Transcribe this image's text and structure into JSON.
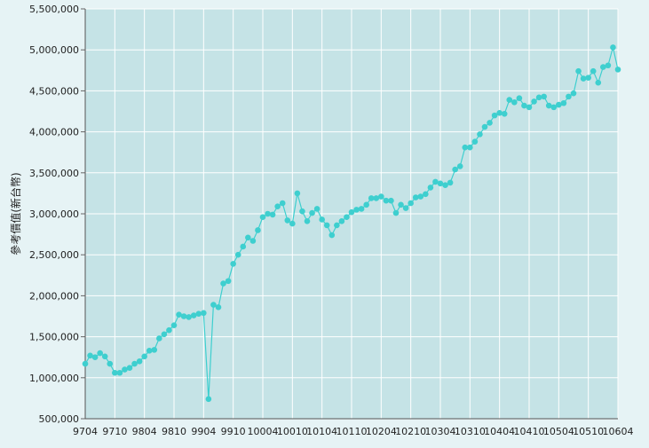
{
  "chart_data": {
    "type": "line",
    "title": "",
    "xlabel": "",
    "ylabel": "參考價值(新台幣)",
    "ylim": [
      500000,
      5500000
    ],
    "y_ticks": [
      "500,000",
      "1,000,000",
      "1,500,000",
      "2,000,000",
      "2,500,000",
      "3,000,000",
      "3,500,000",
      "4,000,000",
      "4,500,000",
      "5,000,000",
      "5,500,000"
    ],
    "x_ticks": [
      "9704",
      "9710",
      "9804",
      "9810",
      "9904",
      "9910",
      "10004",
      "10010",
      "10104",
      "10110",
      "10204",
      "10210",
      "10304",
      "10310",
      "10404",
      "10410",
      "10504",
      "10510",
      "10604"
    ],
    "grid": true,
    "legend": "none",
    "colors": {
      "plot_bg": "#c5e3e6",
      "line": "#3ecfcf",
      "grid": "#ffffff"
    },
    "series": [
      {
        "values": [
          1170000,
          1270000,
          1250000,
          1300000,
          1260000,
          1170000,
          1060000,
          1060000,
          1100000,
          1120000,
          1170000,
          1200000,
          1260000,
          1330000,
          1340000,
          1480000,
          1530000,
          1580000,
          1640000,
          1770000,
          1750000,
          1740000,
          1760000,
          1780000,
          1790000,
          740000,
          1890000,
          1860000,
          2150000,
          2180000,
          2390000,
          2500000,
          2600000,
          2710000,
          2670000,
          2800000,
          2960000,
          3000000,
          2990000,
          3090000,
          3130000,
          2920000,
          2880000,
          3250000,
          3030000,
          2910000,
          3010000,
          3060000,
          2930000,
          2860000,
          2740000,
          2860000,
          2910000,
          2960000,
          3020000,
          3050000,
          3060000,
          3110000,
          3190000,
          3190000,
          3210000,
          3160000,
          3160000,
          3010000,
          3110000,
          3070000,
          3130000,
          3200000,
          3210000,
          3240000,
          3320000,
          3390000,
          3370000,
          3350000,
          3380000,
          3540000,
          3580000,
          3810000,
          3810000,
          3880000,
          3970000,
          4060000,
          4110000,
          4200000,
          4230000,
          4220000,
          4390000,
          4360000,
          4410000,
          4320000,
          4300000,
          4370000,
          4420000,
          4430000,
          4320000,
          4300000,
          4330000,
          4350000,
          4430000,
          4470000,
          4740000,
          4650000,
          4660000,
          4740000,
          4600000,
          4790000,
          4810000,
          5030000,
          4760000
        ]
      }
    ]
  }
}
